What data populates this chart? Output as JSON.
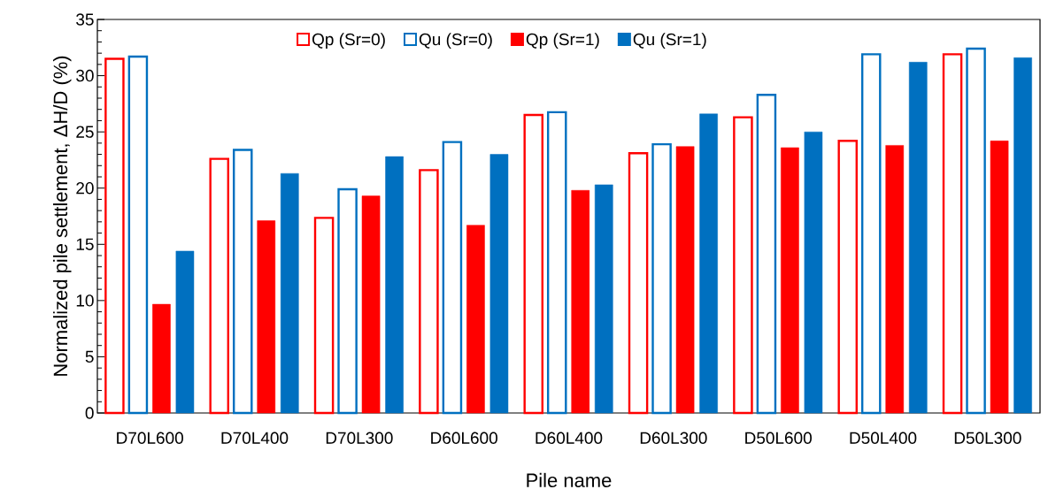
{
  "chart_data": {
    "type": "bar",
    "xlabel": "Pile name",
    "ylabel": "Normalized pile settlement, ΔH/D (%)",
    "categories": [
      "D70L600",
      "D70L400",
      "D70L300",
      "D60L600",
      "D60L400",
      "D60L300",
      "D50L600",
      "D50L400",
      "D50L300"
    ],
    "series": [
      {
        "name": "Qp (Sr=0)",
        "color": "#ff0000",
        "values": [
          31.5,
          22.6,
          17.35,
          21.6,
          26.5,
          23.1,
          26.3,
          24.2,
          31.9
        ]
      },
      {
        "name": "Qu (Sr=0)",
        "color": "#0070c0",
        "values": [
          31.7,
          23.4,
          19.9,
          24.1,
          26.75,
          23.9,
          28.3,
          31.9,
          32.4
        ]
      },
      {
        "name": "Qp (Sr=1)",
        "color": "#ff0000",
        "values": [
          9.67,
          17.1,
          19.3,
          16.7,
          19.8,
          23.7,
          23.6,
          23.8,
          24.2
        ]
      },
      {
        "name": "Qu (Sr=1)",
        "color": "#0070c0",
        "values": [
          14.4,
          21.3,
          22.8,
          23.0,
          20.3,
          26.6,
          25.0,
          31.2,
          31.6
        ]
      }
    ],
    "ylim": [
      0,
      35
    ],
    "yticks": [
      0,
      5,
      10,
      15,
      20,
      25,
      30,
      35
    ],
    "legend": "top"
  }
}
